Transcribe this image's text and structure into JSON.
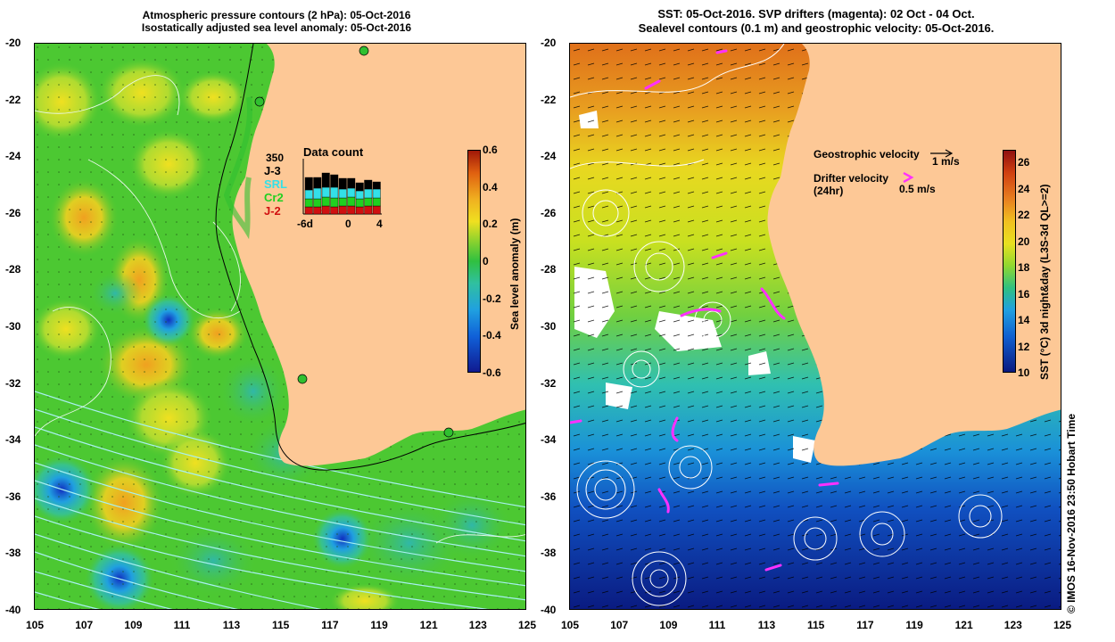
{
  "left": {
    "title_line1": "Atmospheric pressure contours (2 hPa): 05-Oct-2016",
    "title_line2": "Isostatically adjusted sea level anomaly: 05-Oct-2016",
    "colorbar": {
      "label": "Sea level anomaly (m)",
      "ticks": [
        "0.6",
        "0.4",
        "0.2",
        "0",
        "-0.2",
        "-0.4",
        "-0.6"
      ]
    },
    "data_count": {
      "title": "Data count",
      "max": "350",
      "series": [
        {
          "name": "J-3",
          "color": "#000000"
        },
        {
          "name": "SRL",
          "color": "#33e0e8"
        },
        {
          "name": "Cr2",
          "color": "#20d020"
        },
        {
          "name": "J-2",
          "color": "#d01010"
        }
      ],
      "xticks": [
        "-6d",
        "0",
        "4"
      ]
    }
  },
  "right": {
    "title_line1": "SST: 05-Oct-2016. SVP drifters (magenta): 02 Oct - 04 Oct.",
    "title_line2": "Sealevel contours (0.1 m) and geostrophic velocity: 05-Oct-2016.",
    "colorbar": {
      "label": "SST (°C) 3d night&day (L3S-3d QL>=2)",
      "ticks": [
        "26",
        "24",
        "22",
        "20",
        "18",
        "16",
        "14",
        "12",
        "10"
      ]
    },
    "legend": {
      "geo_label": "Geostrophic velocity",
      "geo_scale": "1 m/s",
      "drifter_label": "Drifter velocity",
      "drifter_sub": "(24hr)",
      "drifter_scale": "0.5 m/s"
    }
  },
  "axes": {
    "lat_ticks": [
      "-20",
      "-22",
      "-24",
      "-26",
      "-28",
      "-30",
      "-32",
      "-34",
      "-36",
      "-38",
      "-40"
    ],
    "lon_ticks": [
      "105",
      "107",
      "109",
      "111",
      "113",
      "115",
      "117",
      "119",
      "121",
      "123",
      "125"
    ]
  },
  "credit": "© IMOS 16-Nov-2016 23:50 Hobart Time",
  "colors": {
    "land": "#fdc896",
    "ssla_base": "#4cc832",
    "sst_warm": "#e07a10",
    "sst_cold": "#0a2d9c",
    "drifter": "#ff30ff"
  }
}
